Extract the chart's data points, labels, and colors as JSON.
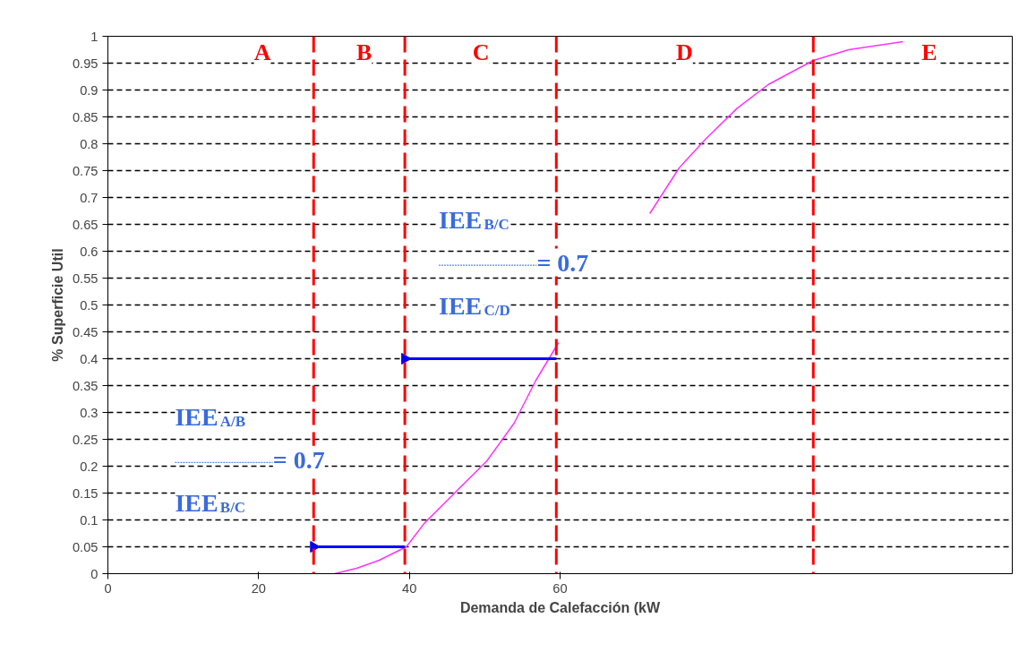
{
  "chart_data": {
    "type": "line",
    "xlabel": "Demanda de Calefacción (kW",
    "ylabel": "% Superficie Util",
    "xlim": [
      0,
      120
    ],
    "xticks": [
      0,
      20,
      40,
      60
    ],
    "ylim": [
      0,
      1
    ],
    "yticks": [
      0,
      0.05,
      0.1,
      0.15,
      0.2,
      0.25,
      0.3,
      0.35,
      0.4,
      0.45,
      0.5,
      0.55,
      0.6,
      0.65,
      0.7,
      0.75,
      0.8,
      0.85,
      0.9,
      0.95,
      1
    ],
    "grid": "y",
    "series": [
      {
        "color": "#ff33ff",
        "x": [
          30.1,
          33,
          36,
          39.6,
          42,
          46,
          50.3,
          53.9,
          56.8,
          59.8,
          66,
          71.9,
          75.8,
          79.4,
          83.5,
          87.6,
          93.6,
          98.3,
          105.5
        ],
        "values": [
          0,
          0.01,
          0.025,
          0.05,
          0.094,
          0.15,
          0.21,
          0.28,
          0.36,
          0.43,
          null,
          0.67,
          0.755,
          0.81,
          0.866,
          0.91,
          0.955,
          0.975,
          0.99
        ]
      },
      {
        "type": "line",
        "marker": "triangle",
        "color": "#0000ff",
        "x": [
          59.5,
          39.4
        ],
        "values": [
          0.4,
          0.4
        ]
      },
      {
        "type": "line",
        "marker": "triangle",
        "color": "#0000ff",
        "x": [
          39.4,
          27.3
        ],
        "values": [
          0.05,
          0.05
        ]
      }
    ],
    "ref_lines": [
      {
        "axis": "x",
        "value": 27.3,
        "color": "#ff0000",
        "line_style": "dashed"
      },
      {
        "axis": "x",
        "value": 39.4,
        "color": "#ff0000",
        "line_style": "dashed"
      },
      {
        "axis": "x",
        "value": 59.5,
        "color": "#ff0000",
        "line_style": "dashed"
      },
      {
        "axis": "x",
        "value": 93.6,
        "color": "#ff0000",
        "line_style": "dashed"
      }
    ],
    "annotations": [
      {
        "text": "A",
        "x": 20.5,
        "y": 0.97
      },
      {
        "text": "B",
        "x": 34,
        "y": 0.97
      },
      {
        "text": "C",
        "x": 49.5,
        "y": 0.97
      },
      {
        "text": "D",
        "x": 76.5,
        "y": 0.97
      },
      {
        "text": "E",
        "x": 109,
        "y": 0.97
      },
      "IEE$_{B/C}$",
      "= 0.7",
      "IEE$_{C/D}$",
      "IEE$_{A/B}$",
      "= 0.7",
      "IEE$_{B/C}$"
    ]
  }
}
